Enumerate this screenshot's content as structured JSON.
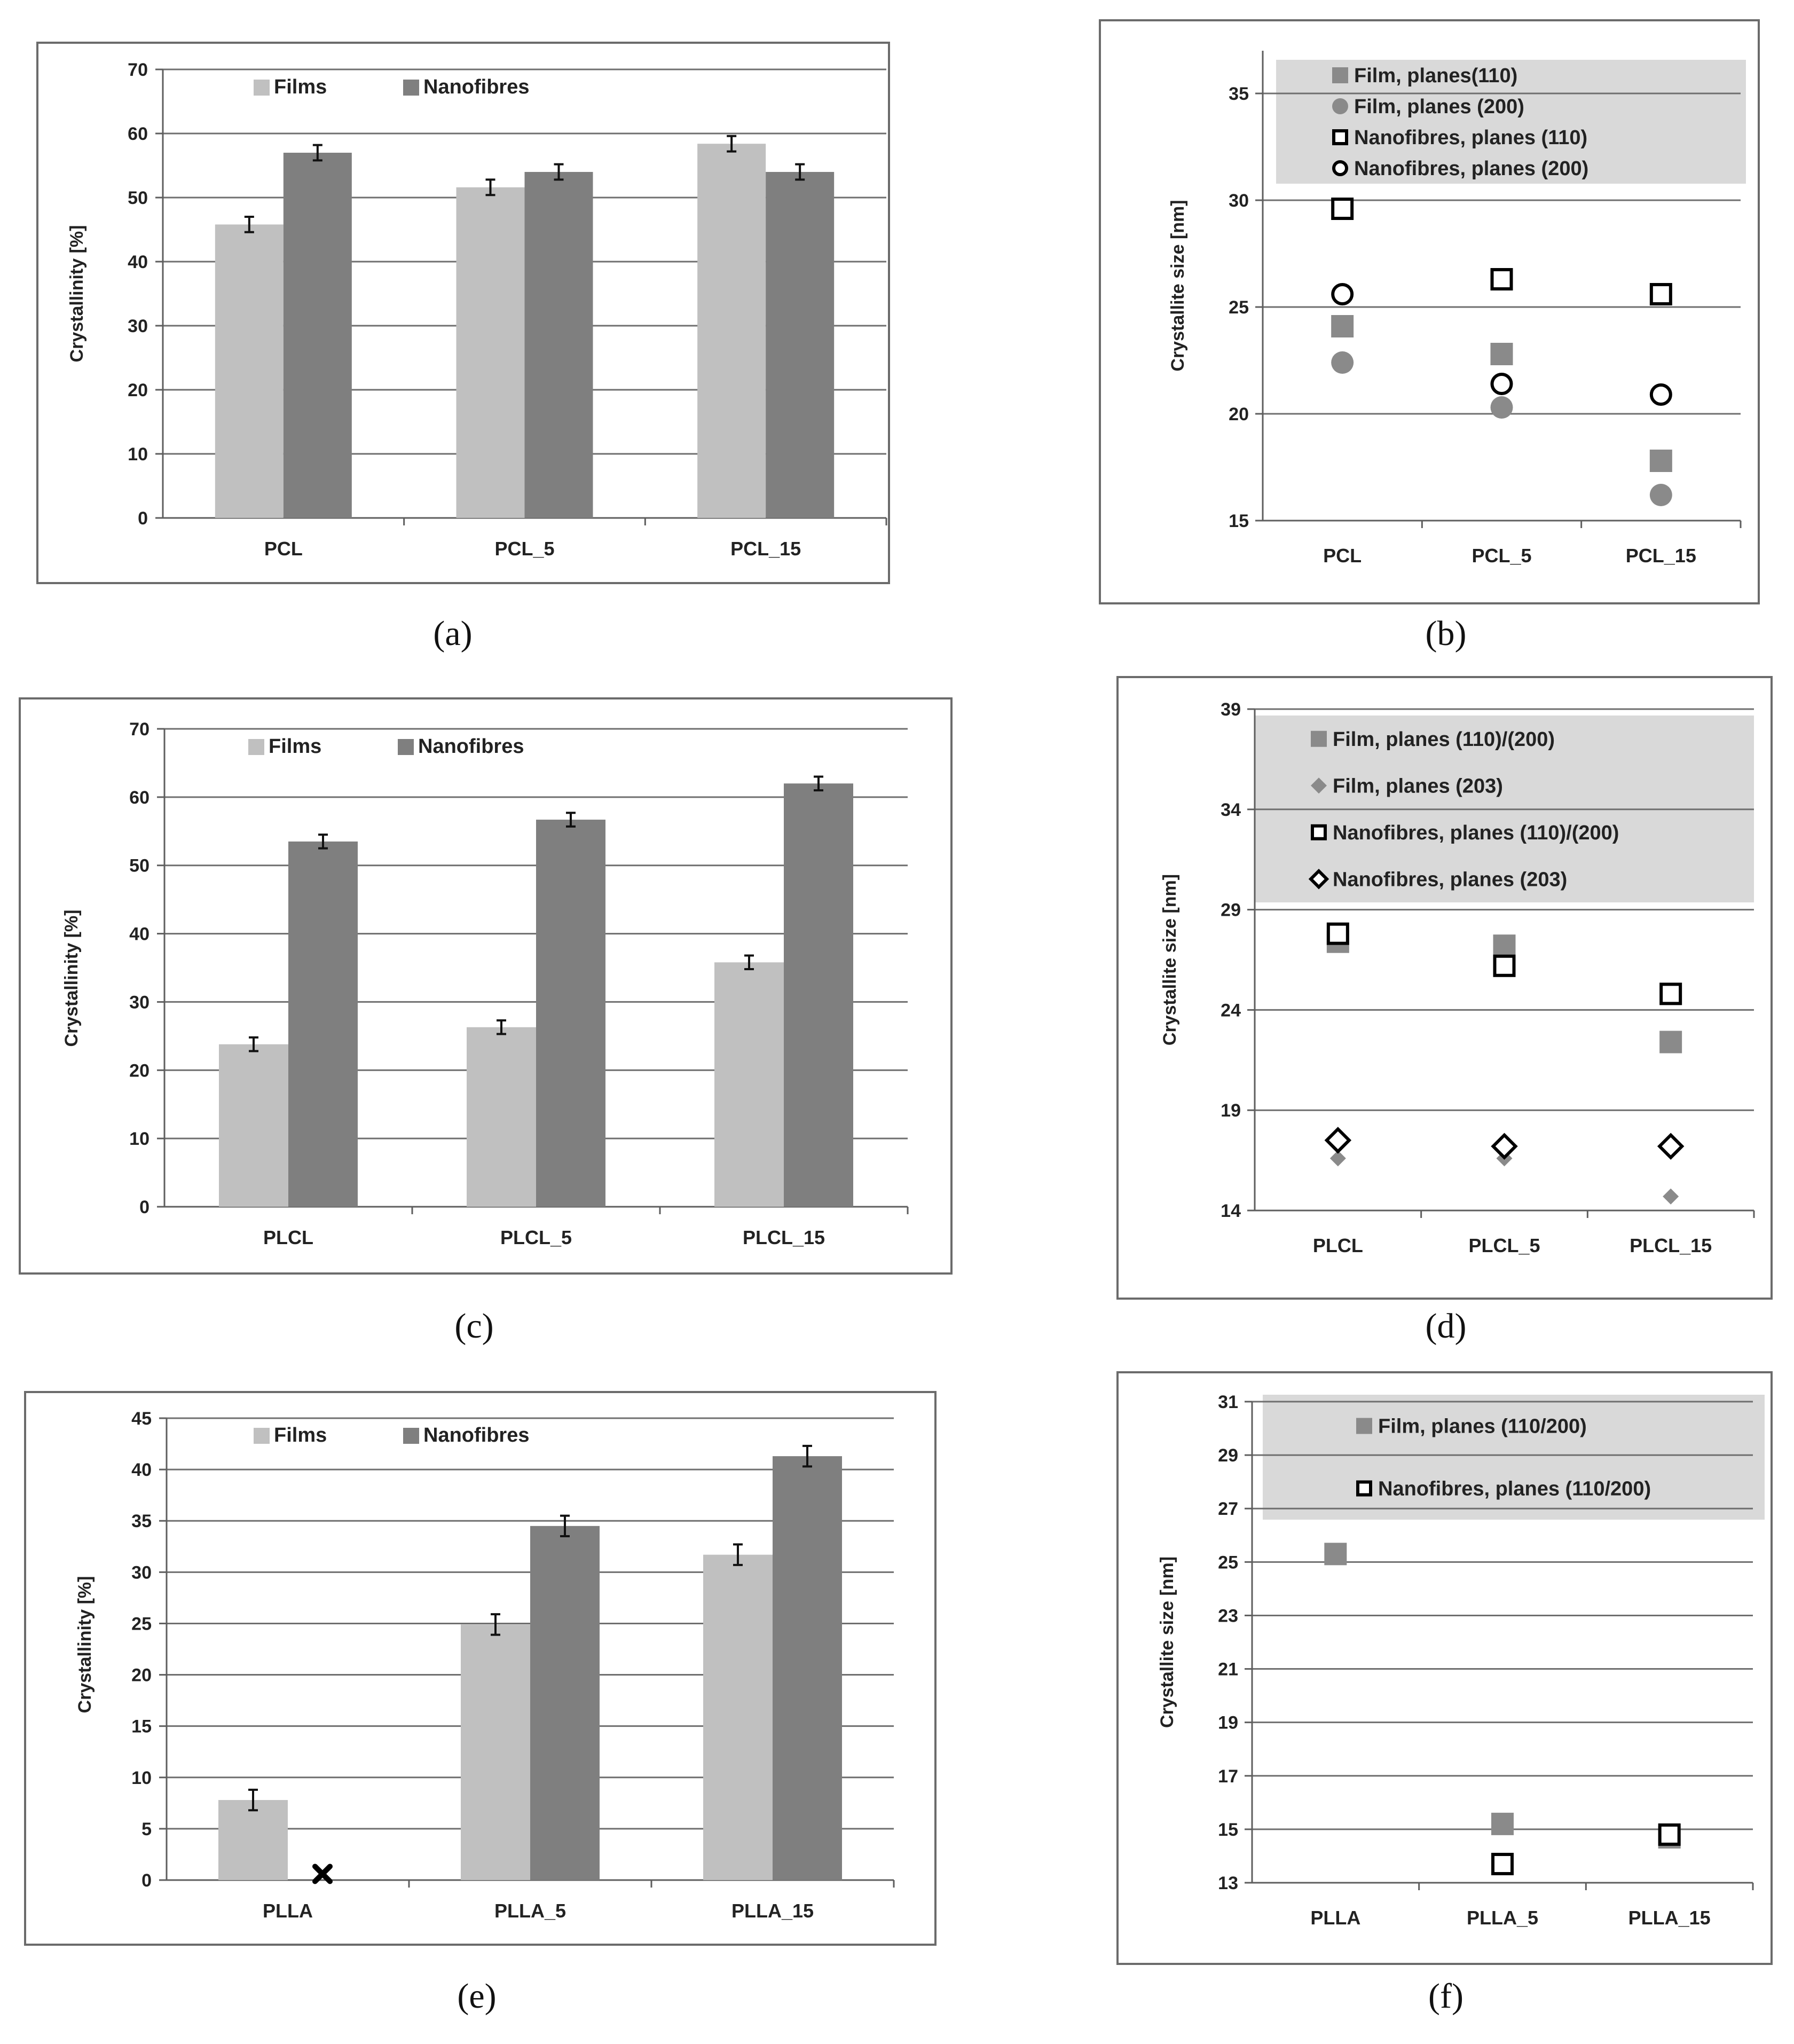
{
  "chart_data": [
    {
      "id": "a",
      "panel_label": "(a)",
      "type": "bar",
      "ylabel": "Crystallinity [%]",
      "ylim": [
        0,
        70
      ],
      "ystep": 10,
      "categories": [
        "PCL",
        "PCL_5",
        "PCL_15"
      ],
      "series": [
        {
          "name": "Films",
          "color": "#c0c0c0",
          "values": [
            45.8,
            51.6,
            58.4
          ],
          "errors": [
            1.2,
            1.2,
            1.2
          ]
        },
        {
          "name": "Nanofibres",
          "color": "#7f7f7f",
          "values": [
            57.0,
            54.0,
            54.0
          ],
          "errors": [
            1.2,
            1.2,
            1.2
          ]
        }
      ],
      "legend": "top",
      "grid": true
    },
    {
      "id": "b",
      "panel_label": "(b)",
      "type": "scatter",
      "ylabel": "Crystallite size [nm]",
      "ylim": [
        15,
        37
      ],
      "yticks": [
        15,
        20,
        25,
        30,
        35
      ],
      "categories": [
        "PCL",
        "PCL_5",
        "PCL_15"
      ],
      "series": [
        {
          "name": "Film, planes(110)",
          "marker": "square-filled",
          "color": "#8a8a8a",
          "values": [
            24.1,
            22.8,
            17.8
          ]
        },
        {
          "name": "Film, planes (200)",
          "marker": "circle-filled",
          "color": "#8a8a8a",
          "values": [
            22.4,
            20.3,
            16.2
          ]
        },
        {
          "name": "Nanofibres, planes (110)",
          "marker": "square-open",
          "color": "#000000",
          "values": [
            29.6,
            26.3,
            25.6
          ]
        },
        {
          "name": "Nanofibres, planes (200)",
          "marker": "circle-open",
          "color": "#000000",
          "values": [
            25.6,
            21.4,
            20.9
          ]
        }
      ],
      "legend": "top",
      "grid": true
    },
    {
      "id": "c",
      "panel_label": "(c)",
      "type": "bar",
      "ylabel": "Crystallinity [%]",
      "ylim": [
        0,
        70
      ],
      "ystep": 10,
      "categories": [
        "PLCL",
        "PLCL_5",
        "PLCL_15"
      ],
      "series": [
        {
          "name": "Films",
          "color": "#c0c0c0",
          "values": [
            23.8,
            26.3,
            35.8
          ],
          "errors": [
            1.0,
            1.0,
            1.0
          ]
        },
        {
          "name": "Nanofibres",
          "color": "#7f7f7f",
          "values": [
            53.5,
            56.7,
            62.0
          ],
          "errors": [
            1.0,
            1.0,
            1.0
          ]
        }
      ],
      "legend": "top",
      "grid": true
    },
    {
      "id": "d",
      "panel_label": "(d)",
      "type": "scatter",
      "ylabel": "Crystallite size [nm]",
      "ylim": [
        14,
        39
      ],
      "yticks": [
        14,
        19,
        24,
        29,
        34,
        39
      ],
      "categories": [
        "PLCL",
        "PLCL_5",
        "PLCL_15"
      ],
      "series": [
        {
          "name": "Film, planes (110)/(200)",
          "marker": "square-filled",
          "color": "#8a8a8a",
          "values": [
            27.4,
            27.2,
            22.4
          ]
        },
        {
          "name": "Film, planes (203)",
          "marker": "diamond-filled",
          "color": "#8a8a8a",
          "values": [
            16.6,
            16.6,
            14.7
          ]
        },
        {
          "name": "Nanofibres, planes (110)/(200)",
          "marker": "square-open",
          "color": "#000000",
          "values": [
            27.8,
            26.2,
            24.8
          ]
        },
        {
          "name": "Nanofibres, planes (203)",
          "marker": "diamond-open",
          "color": "#000000",
          "values": [
            17.5,
            17.2,
            17.2
          ]
        }
      ],
      "legend": "top",
      "grid": true
    },
    {
      "id": "e",
      "panel_label": "(e)",
      "type": "bar",
      "ylabel": "Crystallinity [%]",
      "ylim": [
        0,
        45
      ],
      "ystep": 5,
      "categories": [
        "PLLA",
        "PLLA_5",
        "PLLA_15"
      ],
      "series": [
        {
          "name": "Films",
          "color": "#c0c0c0",
          "values": [
            7.8,
            24.9,
            31.7
          ],
          "errors": [
            1.0,
            1.0,
            1.0
          ]
        },
        {
          "name": "Nanofibres",
          "color": "#7f7f7f",
          "values": [
            null,
            34.5,
            41.3
          ],
          "errors": [
            null,
            1.0,
            1.0
          ]
        }
      ],
      "annotations": [
        {
          "category": "PLLA",
          "series": "Nanofibres",
          "marker": "x",
          "value": 0.6
        }
      ],
      "legend": "top",
      "grid": true
    },
    {
      "id": "f",
      "panel_label": "(f)",
      "type": "scatter",
      "ylabel": "Crystallite size [nm]",
      "ylim": [
        13,
        31
      ],
      "yticks": [
        13,
        15,
        17,
        19,
        21,
        23,
        25,
        27,
        29,
        31
      ],
      "categories": [
        "PLLA",
        "PLLA_5",
        "PLLA_15"
      ],
      "series": [
        {
          "name": "Film, planes (110/200)",
          "marker": "square-filled",
          "color": "#8a8a8a",
          "values": [
            25.3,
            15.2,
            14.7
          ]
        },
        {
          "name": "Nanofibres, planes (110/200)",
          "marker": "square-open",
          "color": "#000000",
          "values": [
            null,
            13.7,
            14.8
          ]
        }
      ],
      "legend": "top",
      "grid": true
    }
  ]
}
